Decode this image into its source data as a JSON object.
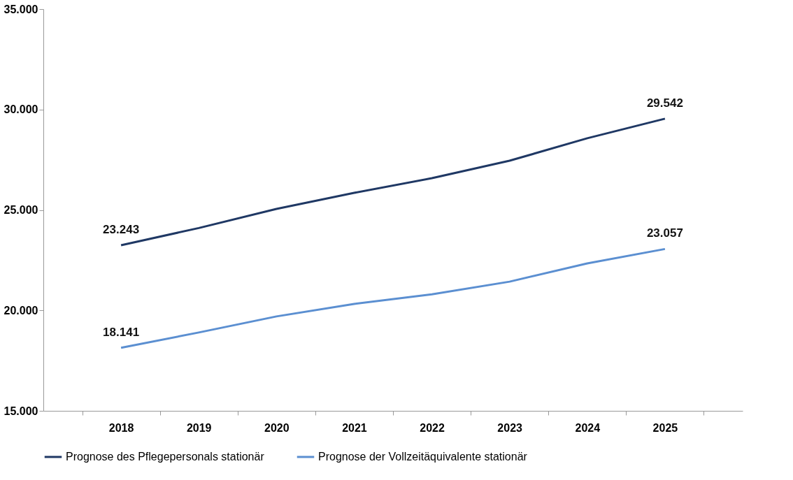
{
  "chart_data": {
    "type": "line",
    "categories": [
      "2018",
      "2019",
      "2020",
      "2021",
      "2022",
      "2023",
      "2024",
      "2025"
    ],
    "series": [
      {
        "name": "Prognose des Pflegepersonals stationär",
        "color": "#1f3864",
        "values": [
          23243,
          24100,
          25050,
          25850,
          26580,
          27450,
          28570,
          29542
        ],
        "value_labels": [
          "23.243",
          null,
          null,
          null,
          null,
          null,
          null,
          "29.542"
        ]
      },
      {
        "name": "Prognose der Vollzeitäquivalente stationär",
        "color": "#5b8fd1",
        "values": [
          18141,
          18900,
          19700,
          20320,
          20800,
          21430,
          22340,
          23057
        ],
        "value_labels": [
          "18.141",
          null,
          null,
          null,
          null,
          null,
          null,
          "23.057"
        ]
      }
    ],
    "ylim": [
      15000,
      35000
    ],
    "yticks": [
      {
        "value": 15000,
        "label": "15.000"
      },
      {
        "value": 20000,
        "label": "20.000"
      },
      {
        "value": 25000,
        "label": "25.000"
      },
      {
        "value": 30000,
        "label": "30.000"
      },
      {
        "value": 35000,
        "label": "35.000"
      }
    ],
    "grid": false,
    "legend": "bottom",
    "marker": "none",
    "line_style": "solid"
  }
}
